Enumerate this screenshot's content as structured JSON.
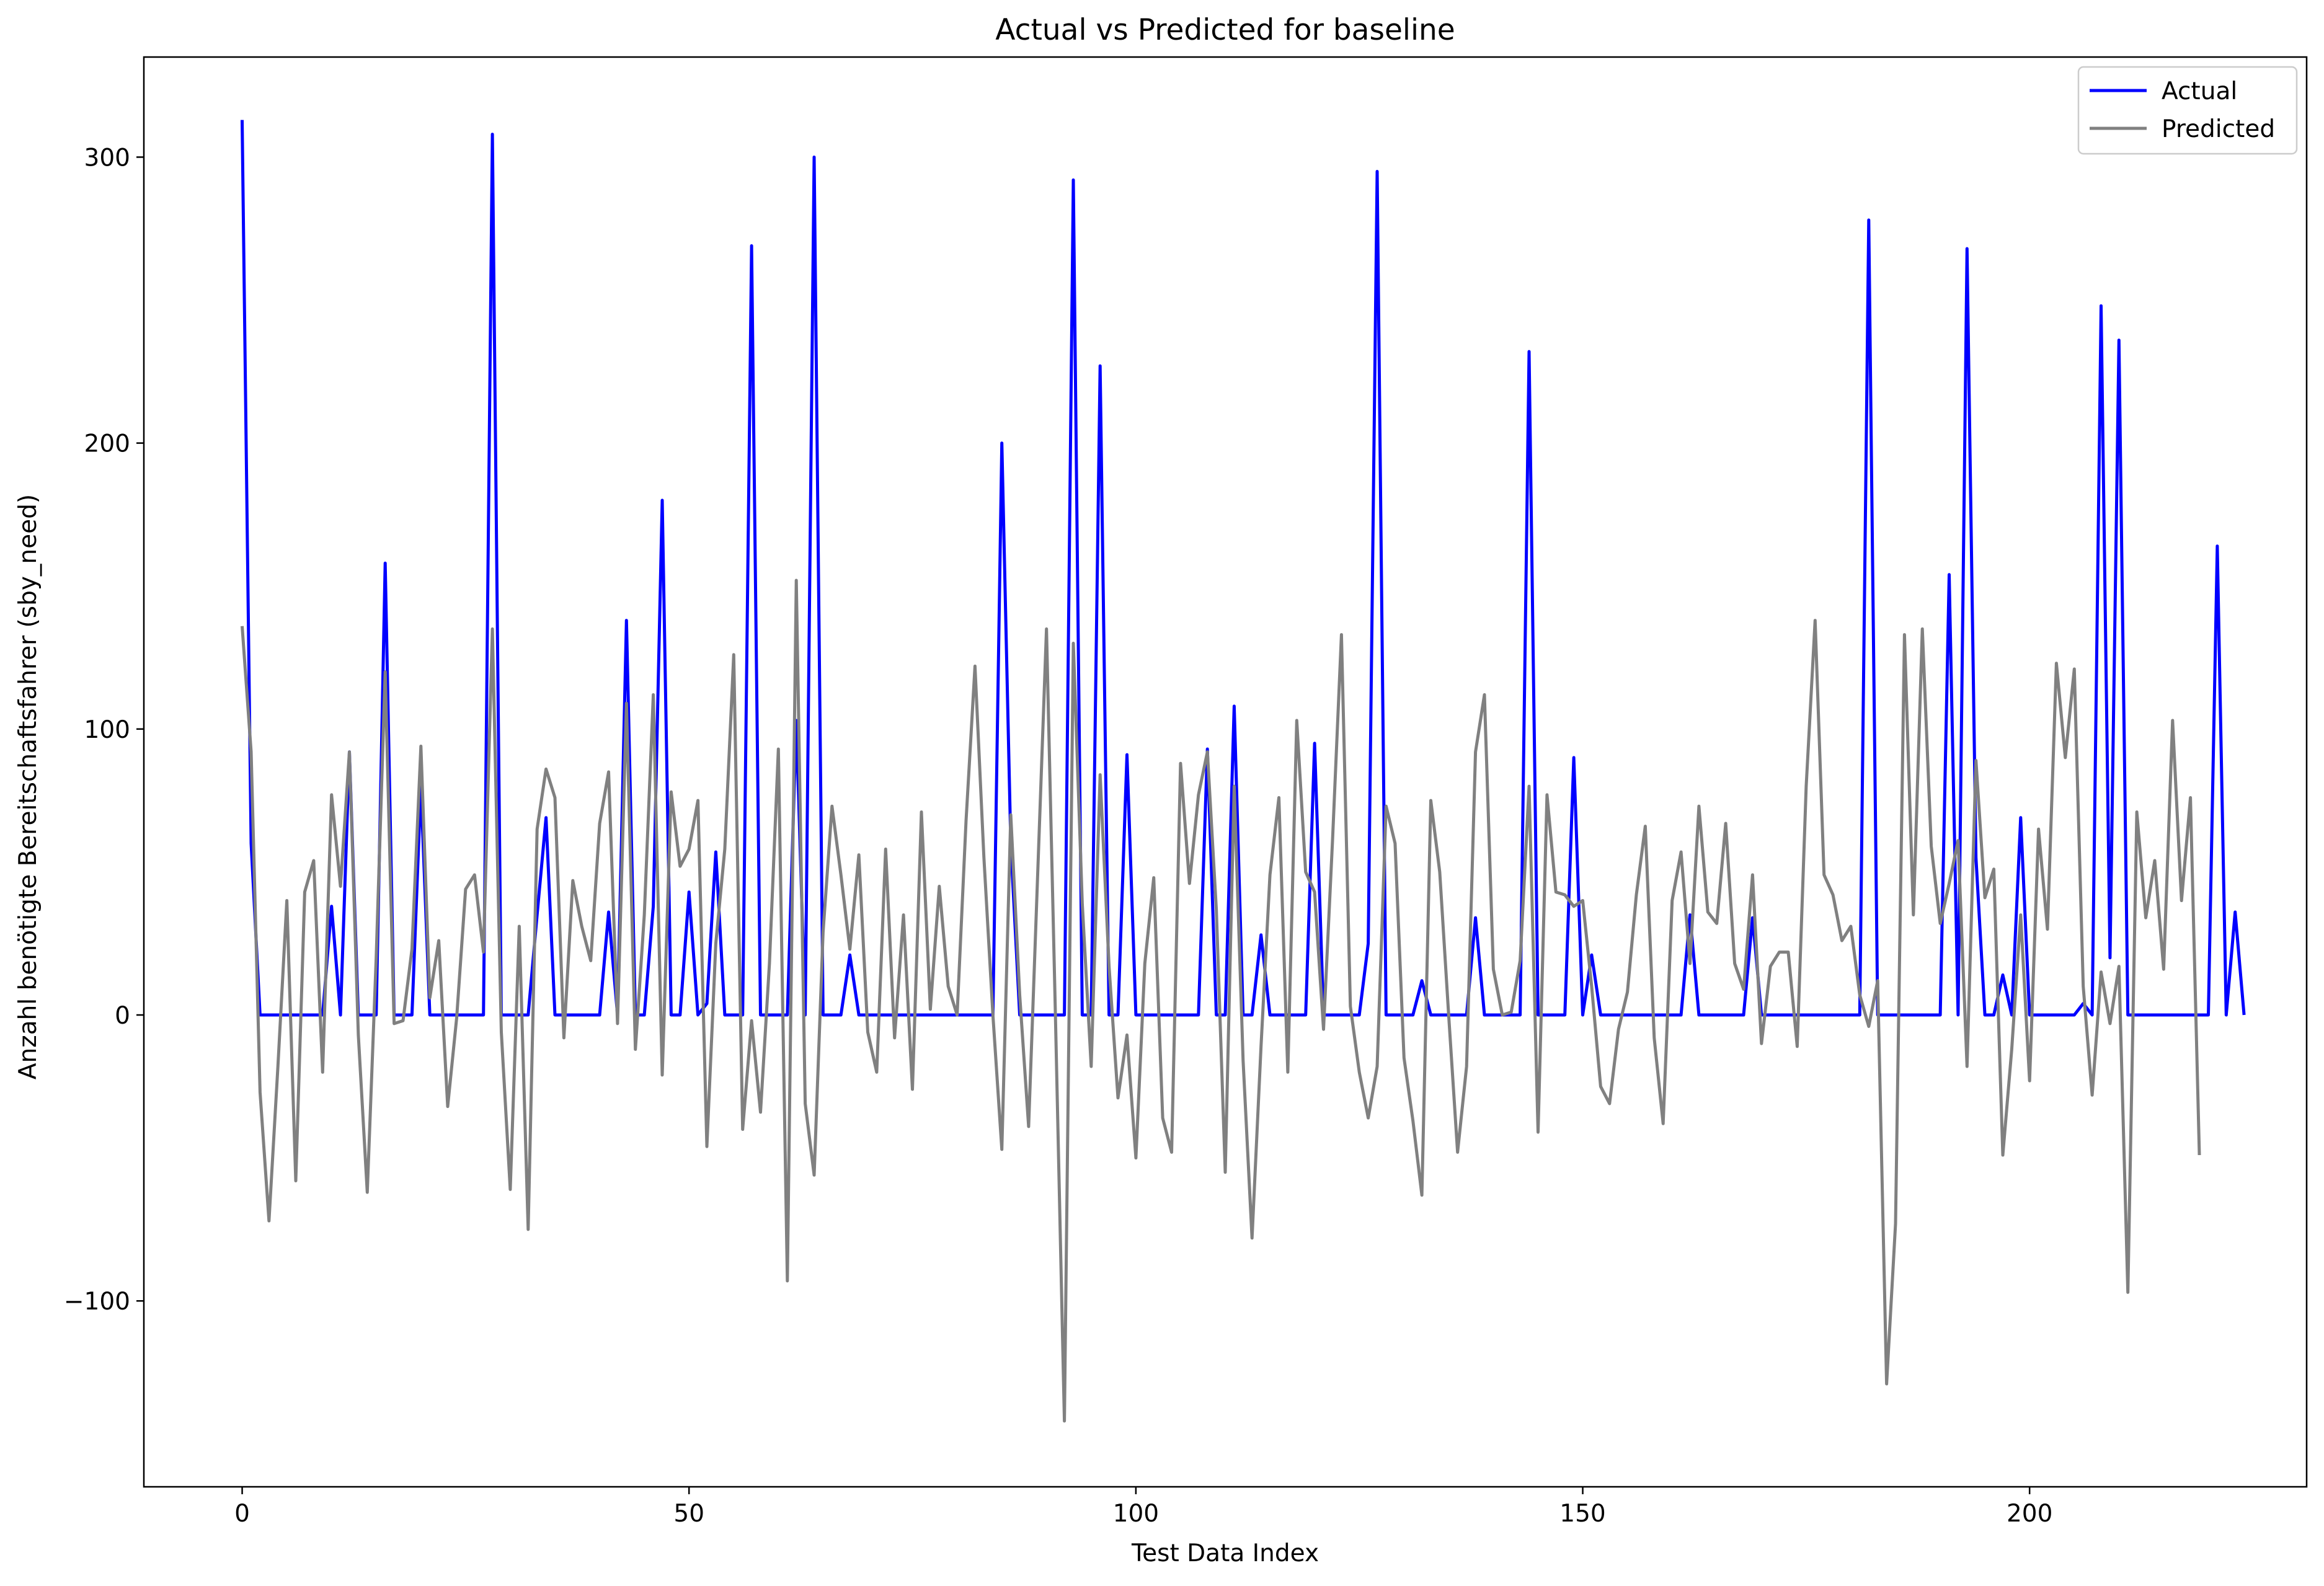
{
  "chart_data": {
    "type": "line",
    "title": "Actual vs Predicted for baseline",
    "xlabel": "Test Data Index",
    "ylabel": "Anzahl benötigte Bereitschaftsfahrer (sby_need)",
    "xlim": [
      -11,
      231
    ],
    "ylim": [
      -165,
      335
    ],
    "xticks": [
      0,
      50,
      100,
      150,
      200
    ],
    "yticks": [
      -100,
      0,
      100,
      200,
      300
    ],
    "xtick_labels": [
      "0",
      "50",
      "100",
      "150",
      "200"
    ],
    "ytick_labels": [
      "−100",
      "0",
      "100",
      "200",
      "300"
    ],
    "grid": false,
    "legend_position": "upper right",
    "series": [
      {
        "name": "Actual",
        "color": "#0000ff",
        "values": [
          313,
          60,
          0,
          0,
          0,
          0,
          0,
          0,
          0,
          0,
          38,
          0,
          92,
          0,
          0,
          0,
          158,
          0,
          0,
          0,
          80,
          0,
          0,
          0,
          0,
          0,
          0,
          0,
          308,
          0,
          0,
          0,
          0,
          35,
          69,
          0,
          0,
          0,
          0,
          0,
          0,
          36,
          0,
          138,
          0,
          0,
          38,
          180,
          0,
          0,
          43,
          0,
          4,
          57,
          0,
          0,
          0,
          269,
          0,
          0,
          0,
          0,
          103,
          0,
          300,
          0,
          0,
          0,
          21,
          0,
          0,
          0,
          0,
          0,
          0,
          0,
          0,
          0,
          0,
          0,
          0,
          0,
          0,
          0,
          0,
          200,
          60,
          0,
          0,
          0,
          0,
          0,
          0,
          292,
          0,
          0,
          227,
          0,
          0,
          91,
          0,
          0,
          0,
          0,
          0,
          0,
          0,
          0,
          93,
          0,
          0,
          108,
          0,
          0,
          28,
          0,
          0,
          0,
          0,
          0,
          95,
          0,
          0,
          0,
          0,
          0,
          25,
          295,
          0,
          0,
          0,
          0,
          12,
          0,
          0,
          0,
          0,
          0,
          34,
          0,
          0,
          0,
          0,
          0,
          232,
          0,
          0,
          0,
          0,
          90,
          0,
          21,
          0,
          0,
          0,
          0,
          0,
          0,
          0,
          0,
          0,
          0,
          35,
          0,
          0,
          0,
          0,
          0,
          0,
          34,
          0,
          0,
          0,
          0,
          0,
          0,
          0,
          0,
          0,
          0,
          0,
          0,
          278,
          0,
          0,
          0,
          0,
          0,
          0,
          0,
          0,
          154,
          0,
          268,
          55,
          0,
          0,
          14,
          0,
          69,
          0,
          0,
          0,
          0,
          0,
          0,
          4,
          0,
          248,
          20,
          236,
          0,
          0,
          0,
          0,
          0,
          0,
          0,
          0,
          0,
          0,
          164,
          0,
          36,
          0
        ]
      },
      {
        "name": "Predicted",
        "color": "#808080",
        "values": [
          136,
          92,
          -27,
          -72,
          -18,
          40,
          -58,
          43,
          54,
          -20,
          77,
          45,
          92,
          -7,
          -62,
          20,
          120,
          -3,
          -2,
          23,
          94,
          6,
          26,
          -32,
          -1,
          44,
          49,
          22,
          135,
          -6,
          -61,
          31,
          -75,
          65,
          86,
          76,
          -8,
          47,
          31,
          19,
          67,
          85,
          -3,
          109,
          -12,
          35,
          112,
          -21,
          78,
          52,
          58,
          75,
          -46,
          25,
          58,
          126,
          -40,
          -2,
          -34,
          18,
          93,
          -93,
          152,
          -31,
          -56,
          29,
          73,
          49,
          23,
          56,
          -6,
          -20,
          58,
          -8,
          35,
          -26,
          71,
          2,
          45,
          10,
          0,
          68,
          122,
          55,
          0,
          -47,
          70,
          7,
          -39,
          48,
          135,
          0,
          -142,
          130,
          39,
          -18,
          84,
          17,
          -29,
          -7,
          -50,
          18,
          48,
          -36,
          -48,
          88,
          46,
          77,
          92,
          37,
          -55,
          80,
          -16,
          -78,
          -11,
          49,
          76,
          -20,
          103,
          50,
          43,
          -5,
          61,
          133,
          3,
          -20,
          -36,
          -18,
          73,
          60,
          -15,
          -37,
          -63,
          75,
          50,
          0,
          -48,
          -18,
          92,
          112,
          16,
          0,
          1,
          19,
          80,
          -41,
          77,
          43,
          42,
          38,
          40,
          10,
          -25,
          -31,
          -5,
          8,
          42,
          66,
          -8,
          -38,
          40,
          57,
          18,
          73,
          36,
          32,
          67,
          18,
          9,
          49,
          -10,
          17,
          22,
          22,
          -11,
          80,
          138,
          49,
          42,
          26,
          31,
          7,
          -4,
          12,
          -129,
          -73,
          133,
          35,
          135,
          59,
          32,
          46,
          61,
          -18,
          89,
          41,
          51,
          -49,
          -12,
          35,
          -23,
          65,
          30,
          123,
          90,
          121,
          10,
          -28,
          15,
          -3,
          17,
          -97,
          71,
          34,
          54,
          16,
          103,
          40,
          76,
          -49
        ]
      }
    ]
  }
}
